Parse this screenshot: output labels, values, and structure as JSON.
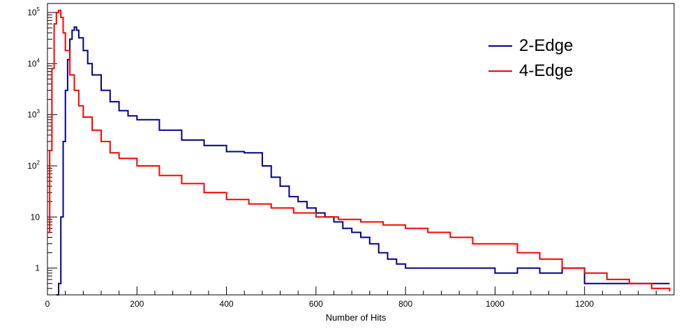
{
  "chart_data": {
    "type": "line",
    "title": "",
    "xlabel": "Number of Hits",
    "ylabel": "",
    "xlim": [
      0,
      1400
    ],
    "ylim": [
      0.3,
      150000
    ],
    "y_scale": "log",
    "x_ticks": [
      0,
      200,
      400,
      600,
      800,
      1000,
      1200
    ],
    "x_tick_labels": [
      "0",
      "200",
      "400",
      "600",
      "800",
      "1000",
      "1200"
    ],
    "y_tick_labels": [
      {
        "base": "10",
        "exp": "5",
        "value": 100000
      },
      {
        "base": "10",
        "exp": "4",
        "value": 10000
      },
      {
        "base": "10",
        "exp": "3",
        "value": 1000
      },
      {
        "base": "10",
        "exp": "2",
        "value": 100
      },
      {
        "base": "10",
        "exp": "",
        "value": 10
      },
      {
        "base": "1",
        "exp": "",
        "value": 1
      }
    ],
    "grid": false,
    "legend_position": "top-right",
    "series": [
      {
        "name": "2-Edge",
        "color": "#00008b",
        "x": [
          20,
          25,
          30,
          35,
          40,
          45,
          50,
          55,
          60,
          65,
          70,
          80,
          90,
          100,
          120,
          140,
          160,
          180,
          200,
          250,
          300,
          350,
          400,
          440,
          480,
          500,
          520,
          540,
          560,
          580,
          600,
          620,
          640,
          660,
          680,
          700,
          720,
          740,
          760,
          780,
          800,
          850,
          900,
          950,
          1000,
          1050,
          1100,
          1150,
          1200,
          1300,
          1390
        ],
        "values": [
          0.3,
          0.5,
          10,
          300,
          3000,
          12000,
          30000,
          45000,
          52000,
          45000,
          32000,
          18000,
          10000,
          6000,
          3000,
          1800,
          1200,
          950,
          800,
          500,
          320,
          250,
          190,
          180,
          100,
          60,
          40,
          25,
          20,
          15,
          12,
          10,
          8,
          6,
          5,
          4,
          3,
          2,
          1.5,
          1.2,
          1,
          1,
          1,
          1,
          0.8,
          1,
          0.8,
          1,
          0.5,
          0.5,
          0.5
        ]
      },
      {
        "name": "4-Edge",
        "color": "#ff0000",
        "x": [
          0,
          5,
          10,
          15,
          20,
          25,
          30,
          35,
          40,
          50,
          60,
          70,
          80,
          100,
          120,
          140,
          160,
          200,
          250,
          300,
          350,
          400,
          450,
          500,
          550,
          600,
          650,
          700,
          750,
          800,
          850,
          900,
          950,
          1000,
          1050,
          1100,
          1150,
          1200,
          1250,
          1300,
          1350,
          1390
        ],
        "values": [
          5,
          200,
          8000,
          60000,
          100000,
          110000,
          80000,
          40000,
          18000,
          6000,
          3000,
          1500,
          900,
          500,
          300,
          180,
          140,
          100,
          65,
          45,
          30,
          22,
          18,
          15,
          12,
          10,
          9,
          8,
          7,
          6,
          5,
          4,
          3,
          3,
          2,
          1.5,
          1,
          0.8,
          0.6,
          0.5,
          0.4,
          0.35
        ]
      }
    ]
  }
}
